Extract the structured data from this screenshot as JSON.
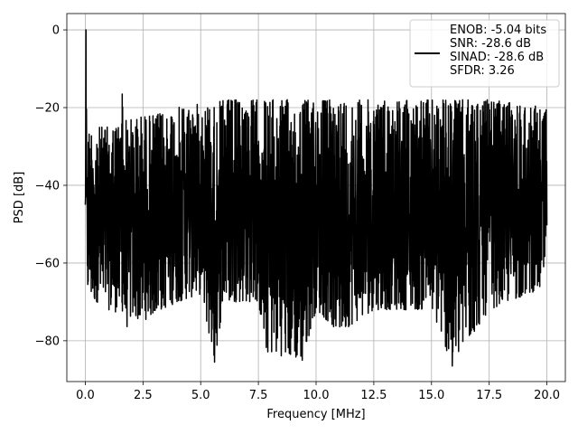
{
  "chart_data": {
    "type": "line",
    "title": "",
    "xlabel": "Frequency [MHz]",
    "ylabel": "PSD [dB]",
    "xlim": [
      -0.8,
      20.8
    ],
    "ylim": [
      -90.5,
      4.2
    ],
    "xticks": [
      0.0,
      2.5,
      5.0,
      7.5,
      10.0,
      12.5,
      15.0,
      17.5,
      20.0
    ],
    "xtick_labels": [
      "0.0",
      "2.5",
      "5.0",
      "7.5",
      "10.0",
      "12.5",
      "15.0",
      "17.5",
      "20.0"
    ],
    "yticks": [
      0,
      -20,
      -40,
      -60,
      -80
    ],
    "ytick_labels": [
      "0",
      "−20",
      "−40",
      "−60",
      "−80"
    ],
    "grid": true,
    "legend_position": "top-right",
    "series_color": "#000000",
    "legend_entries": [
      "ENOB: -5.04 bits",
      "SNR: -28.6 dB",
      "SINAD: -28.6 dB",
      "SFDR: 3.26"
    ],
    "series": [
      {
        "description": "dense noise-like PSD trace",
        "x": [
          0,
          0.03,
          0.05,
          0.1,
          0.3,
          0.5,
          1.0,
          1.5,
          1.6,
          1.7,
          2.0,
          2.5,
          3.0,
          4.0,
          5.0,
          5.6,
          6.0,
          7.5,
          7.8,
          9.4,
          10.0,
          11.0,
          12.5,
          15.0,
          15.9,
          17.5,
          20.0
        ],
        "upper": [
          -45,
          0,
          -18,
          -26,
          -25,
          -25,
          -25,
          -24,
          -17,
          -23,
          -23,
          -22,
          -22,
          -20,
          -19,
          -19,
          -18,
          -18,
          -18,
          -18,
          -18,
          -18,
          -18,
          -18,
          -18,
          -18,
          -20
        ],
        "lower": [
          -45,
          -45,
          -62,
          -68,
          -70,
          -70,
          -72,
          -73,
          -72,
          -78,
          -74,
          -75,
          -73,
          -70,
          -68,
          -85.5,
          -70,
          -70,
          -83,
          -85,
          -72,
          -78,
          -72,
          -72,
          -86.5,
          -72,
          -66
        ],
        "peaks": [
          {
            "x": 0.03,
            "y": 0
          },
          {
            "x": 1.6,
            "y": -16.5
          },
          {
            "x": 5.6,
            "y": -85.5
          },
          {
            "x": 9.4,
            "y": -85
          },
          {
            "x": 15.9,
            "y": -86.5
          }
        ]
      }
    ]
  }
}
